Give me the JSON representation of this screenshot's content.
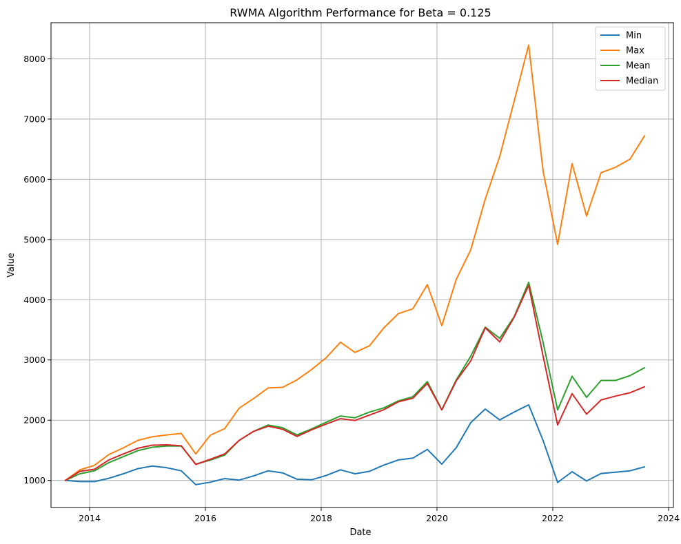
{
  "chart_data": {
    "type": "line",
    "title": "RWMA Algorithm Performance for Beta = 0.125",
    "xlabel": "Date",
    "ylabel": "Value",
    "xlim": [
      "2013-05-01",
      "2024-02-01"
    ],
    "ylim": [
      550,
      8600
    ],
    "x_ticks": [
      "2014",
      "2016",
      "2018",
      "2020",
      "2022",
      "2024"
    ],
    "y_ticks": [
      1000,
      2000,
      3000,
      4000,
      5000,
      6000,
      7000,
      8000
    ],
    "grid": true,
    "legend_position": "top-right",
    "x": [
      "2013-08",
      "2013-11",
      "2014-02",
      "2014-05",
      "2014-08",
      "2014-11",
      "2015-02",
      "2015-05",
      "2015-08",
      "2015-11",
      "2016-02",
      "2016-05",
      "2016-08",
      "2016-11",
      "2017-02",
      "2017-05",
      "2017-08",
      "2017-11",
      "2018-02",
      "2018-05",
      "2018-08",
      "2018-11",
      "2019-02",
      "2019-05",
      "2019-08",
      "2019-11",
      "2020-02",
      "2020-05",
      "2020-08",
      "2020-11",
      "2021-02",
      "2021-05",
      "2021-08",
      "2021-11",
      "2022-02",
      "2022-05",
      "2022-08",
      "2022-11",
      "2023-02",
      "2023-05",
      "2023-08"
    ],
    "series": [
      {
        "name": "Min",
        "color": "#1f77b4",
        "values": [
          1000,
          980,
          980,
          1035,
          1110,
          1195,
          1240,
          1210,
          1160,
          930,
          970,
          1030,
          1005,
          1075,
          1160,
          1125,
          1020,
          1010,
          1080,
          1175,
          1110,
          1150,
          1255,
          1340,
          1370,
          1515,
          1270,
          1545,
          1960,
          2185,
          2005,
          2135,
          2255,
          1660,
          965,
          1145,
          990,
          1115,
          1135,
          1160,
          1225
        ]
      },
      {
        "name": "Max",
        "color": "#ff7f0e",
        "values": [
          1000,
          1175,
          1250,
          1430,
          1540,
          1665,
          1725,
          1755,
          1780,
          1440,
          1750,
          1860,
          2200,
          2360,
          2535,
          2545,
          2670,
          2840,
          3035,
          3295,
          3125,
          3235,
          3535,
          3770,
          3850,
          4250,
          3570,
          4340,
          4830,
          5670,
          6380,
          7300,
          8230,
          6130,
          4920,
          6260,
          5390,
          6110,
          6200,
          6335,
          6720
        ]
      },
      {
        "name": "Mean",
        "color": "#2ca02c",
        "values": [
          1000,
          1110,
          1160,
          1295,
          1395,
          1495,
          1550,
          1570,
          1570,
          1270,
          1335,
          1420,
          1665,
          1815,
          1920,
          1875,
          1755,
          1855,
          1965,
          2070,
          2040,
          2135,
          2205,
          2320,
          2390,
          2640,
          2175,
          2670,
          3065,
          3545,
          3360,
          3720,
          4290,
          3290,
          2170,
          2730,
          2380,
          2660,
          2660,
          2740,
          2870
        ]
      },
      {
        "name": "Median",
        "color": "#d62728",
        "values": [
          1000,
          1150,
          1185,
          1340,
          1440,
          1535,
          1585,
          1590,
          1575,
          1265,
          1350,
          1440,
          1665,
          1815,
          1900,
          1850,
          1730,
          1840,
          1935,
          2025,
          1995,
          2085,
          2175,
          2305,
          2365,
          2610,
          2170,
          2655,
          2985,
          3535,
          3300,
          3710,
          4240,
          3060,
          1920,
          2440,
          2100,
          2335,
          2400,
          2455,
          2555
        ]
      }
    ]
  }
}
